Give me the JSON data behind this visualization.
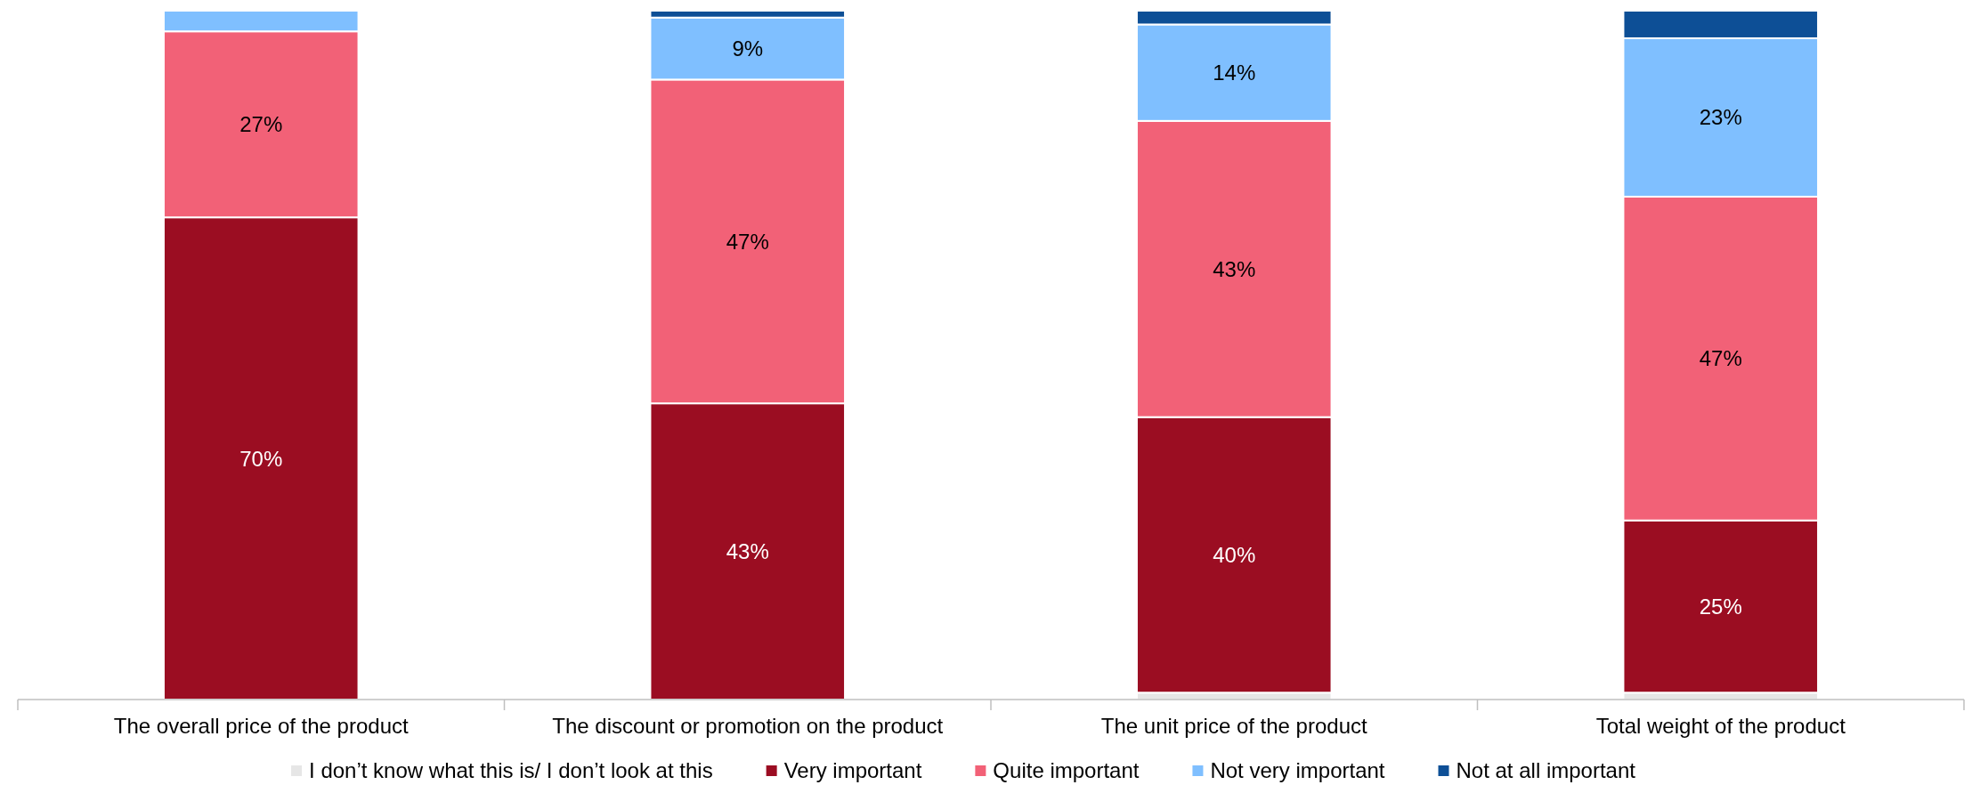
{
  "chart_data": {
    "type": "bar",
    "stacked": true,
    "ylim": [
      0,
      100
    ],
    "legend": "bottom",
    "tick_labels": "x",
    "categories": [
      "The overall price of the product",
      "The discount or promotion on the product",
      "The unit price of the product",
      "Total weight of the product"
    ],
    "series": [
      {
        "name": "I don’t know what this is/ I don’t look at this",
        "color": "#e6e6e6",
        "values": [
          0,
          0,
          1,
          1
        ],
        "value_labels": [
          null,
          null,
          null,
          null
        ]
      },
      {
        "name": "Very important",
        "color": "#9b0d22",
        "values": [
          70,
          43,
          40,
          25
        ],
        "value_labels": [
          "70%",
          "43%",
          "40%",
          "25%"
        ]
      },
      {
        "name": "Quite important",
        "color": "#f26177",
        "values": [
          27,
          47,
          43,
          47
        ],
        "value_labels": [
          "27%",
          "47%",
          "43%",
          "47%"
        ]
      },
      {
        "name": "Not very important",
        "color": "#7fbfff",
        "values": [
          3,
          9,
          14,
          23
        ],
        "value_labels": [
          null,
          "9%",
          "14%",
          "23%"
        ]
      },
      {
        "name": "Not at all important",
        "color": "#0d4f96",
        "values": [
          0,
          1,
          2,
          4
        ],
        "value_labels": [
          null,
          null,
          null,
          null
        ]
      }
    ]
  }
}
